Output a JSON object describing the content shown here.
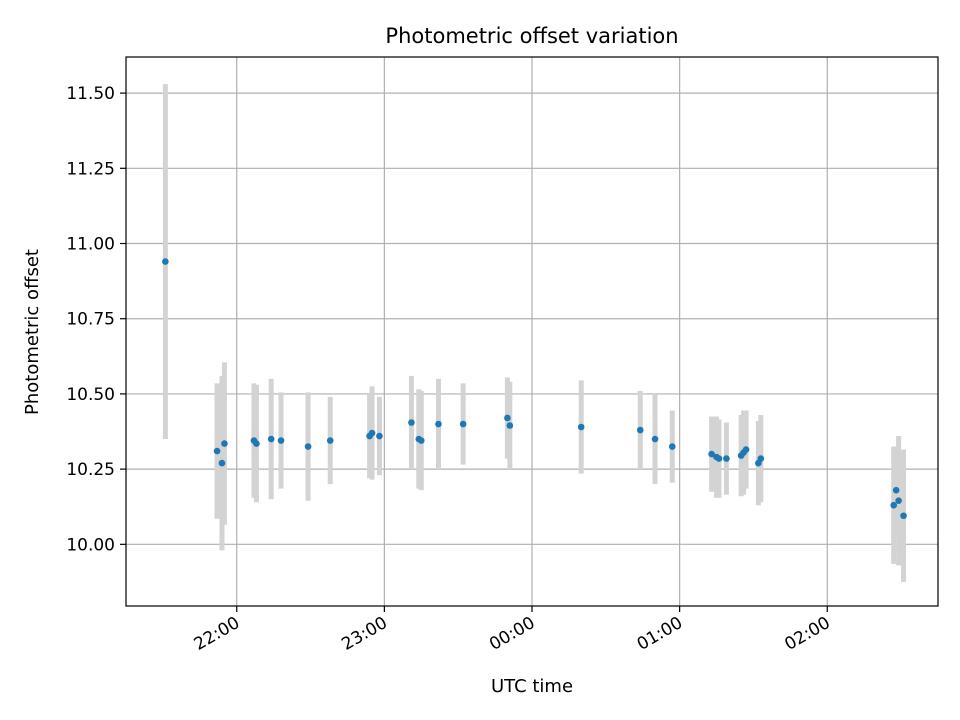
{
  "chart_data": {
    "type": "scatter",
    "title": "Photometric offset variation",
    "xlabel": "UTC time",
    "ylabel": "Photometric offset",
    "xlim": [
      "2021-01-01 21:15",
      "2021-01-02 02:45"
    ],
    "ylim": [
      9.795,
      11.62
    ],
    "x_ticks": [
      {
        "time": "2021-01-01 22:00",
        "label": "22:00"
      },
      {
        "time": "2021-01-01 23:00",
        "label": "23:00"
      },
      {
        "time": "2021-01-02 00:00",
        "label": "00:00"
      },
      {
        "time": "2021-01-02 01:00",
        "label": "01:00"
      },
      {
        "time": "2021-01-02 02:00",
        "label": "02:00"
      }
    ],
    "y_ticks": [
      10.0,
      10.25,
      10.5,
      10.75,
      11.0,
      11.25,
      11.5
    ],
    "y_tick_labels": [
      "10.00",
      "10.25",
      "10.50",
      "10.75",
      "11.00",
      "11.25",
      "11.50"
    ],
    "grid": true,
    "point_color": "#1f77b4",
    "errorbar_color": "#d3d3d3",
    "points": [
      {
        "x": "2021-01-01 21:31",
        "y": 10.94,
        "err": 0.59
      },
      {
        "x": "2021-01-01 21:52",
        "y": 10.31,
        "err": 0.225
      },
      {
        "x": "2021-01-01 21:54",
        "y": 10.27,
        "err": 0.29
      },
      {
        "x": "2021-01-01 21:55",
        "y": 10.335,
        "err": 0.27
      },
      {
        "x": "2021-01-01 22:07",
        "y": 10.345,
        "err": 0.19
      },
      {
        "x": "2021-01-01 22:08",
        "y": 10.335,
        "err": 0.195
      },
      {
        "x": "2021-01-01 22:14",
        "y": 10.35,
        "err": 0.2
      },
      {
        "x": "2021-01-01 22:18",
        "y": 10.345,
        "err": 0.16
      },
      {
        "x": "2021-01-01 22:29",
        "y": 10.325,
        "err": 0.18
      },
      {
        "x": "2021-01-01 22:38",
        "y": 10.345,
        "err": 0.145
      },
      {
        "x": "2021-01-01 22:54",
        "y": 10.36,
        "err": 0.14
      },
      {
        "x": "2021-01-01 22:55",
        "y": 10.37,
        "err": 0.155
      },
      {
        "x": "2021-01-01 22:58",
        "y": 10.36,
        "err": 0.13
      },
      {
        "x": "2021-01-01 23:11",
        "y": 10.405,
        "err": 0.155
      },
      {
        "x": "2021-01-01 23:14",
        "y": 10.35,
        "err": 0.165
      },
      {
        "x": "2021-01-01 23:15",
        "y": 10.345,
        "err": 0.165
      },
      {
        "x": "2021-01-01 23:22",
        "y": 10.4,
        "err": 0.15
      },
      {
        "x": "2021-01-01 23:32",
        "y": 10.4,
        "err": 0.135
      },
      {
        "x": "2021-01-01 23:50",
        "y": 10.42,
        "err": 0.135
      },
      {
        "x": "2021-01-01 23:51",
        "y": 10.395,
        "err": 0.145
      },
      {
        "x": "2021-01-02 00:20",
        "y": 10.39,
        "err": 0.155
      },
      {
        "x": "2021-01-02 00:44",
        "y": 10.38,
        "err": 0.13
      },
      {
        "x": "2021-01-02 00:50",
        "y": 10.35,
        "err": 0.15
      },
      {
        "x": "2021-01-02 00:57",
        "y": 10.325,
        "err": 0.12
      },
      {
        "x": "2021-01-02 01:13",
        "y": 10.3,
        "err": 0.125
      },
      {
        "x": "2021-01-02 01:15",
        "y": 10.29,
        "err": 0.135
      },
      {
        "x": "2021-01-02 01:16",
        "y": 10.285,
        "err": 0.13
      },
      {
        "x": "2021-01-02 01:19",
        "y": 10.285,
        "err": 0.12
      },
      {
        "x": "2021-01-02 01:25",
        "y": 10.295,
        "err": 0.135
      },
      {
        "x": "2021-01-02 01:26",
        "y": 10.305,
        "err": 0.14
      },
      {
        "x": "2021-01-02 01:27",
        "y": 10.315,
        "err": 0.13
      },
      {
        "x": "2021-01-02 01:32",
        "y": 10.27,
        "err": 0.14
      },
      {
        "x": "2021-01-02 01:33",
        "y": 10.285,
        "err": 0.145
      },
      {
        "x": "2021-01-02 02:27",
        "y": 10.13,
        "err": 0.195
      },
      {
        "x": "2021-01-02 02:28",
        "y": 10.18,
        "err": 0.145
      },
      {
        "x": "2021-01-02 02:29",
        "y": 10.145,
        "err": 0.215
      },
      {
        "x": "2021-01-02 02:31",
        "y": 10.095,
        "err": 0.22
      }
    ]
  }
}
